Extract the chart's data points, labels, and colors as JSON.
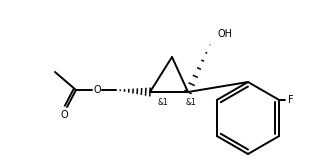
{
  "bg_color": "#ffffff",
  "line_color": "#000000",
  "lw": 1.4,
  "fig_width": 3.29,
  "fig_height": 1.61,
  "dpi": 100,
  "label_OH": "OH",
  "label_O_ester": "O",
  "label_O_carbonyl": "O",
  "label_F": "F",
  "stereo1": "&1",
  "stereo2": "&1",
  "label_fs": 7.0,
  "stereo_fs": 5.5
}
